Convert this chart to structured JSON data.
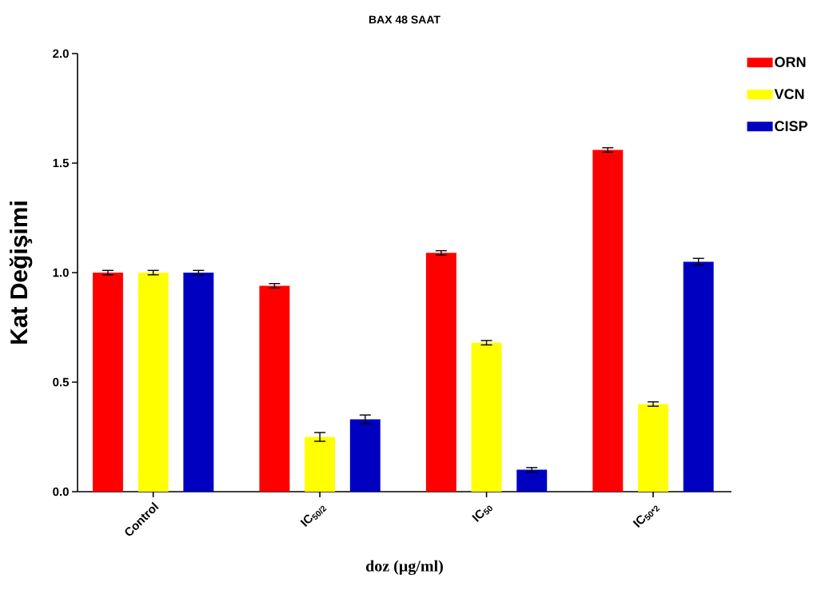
{
  "chart_data": {
    "type": "bar",
    "title": "BAX 48 SAAT",
    "xlabel": "doz (µg/ml)",
    "ylabel": "Kat Değişimi",
    "categories": [
      "Control",
      "IC$_{50/2}$",
      "IC$_{50}$",
      "IC$_{50*2}$"
    ],
    "series": [
      {
        "name": "ORN",
        "color": "#ff0000",
        "values": [
          1.0,
          0.94,
          1.09,
          1.56
        ],
        "errors": [
          0.01,
          0.01,
          0.01,
          0.01
        ]
      },
      {
        "name": "VCN",
        "color": "#ffff00",
        "values": [
          1.0,
          0.25,
          0.68,
          0.4
        ],
        "errors": [
          0.01,
          0.02,
          0.01,
          0.01
        ]
      },
      {
        "name": "CISP",
        "color": "#0000c0",
        "values": [
          1.0,
          0.33,
          0.1,
          1.05
        ],
        "errors": [
          0.01,
          0.02,
          0.01,
          0.015
        ]
      }
    ],
    "ylim": [
      0,
      2
    ],
    "yticks": [
      {
        "value": 0,
        "label": "0.0"
      },
      0.5,
      {
        "value": 1,
        "label": "1.0"
      },
      1.5,
      {
        "value": 2,
        "label": "2.0"
      }
    ],
    "grid": false,
    "legend": "top right"
  }
}
